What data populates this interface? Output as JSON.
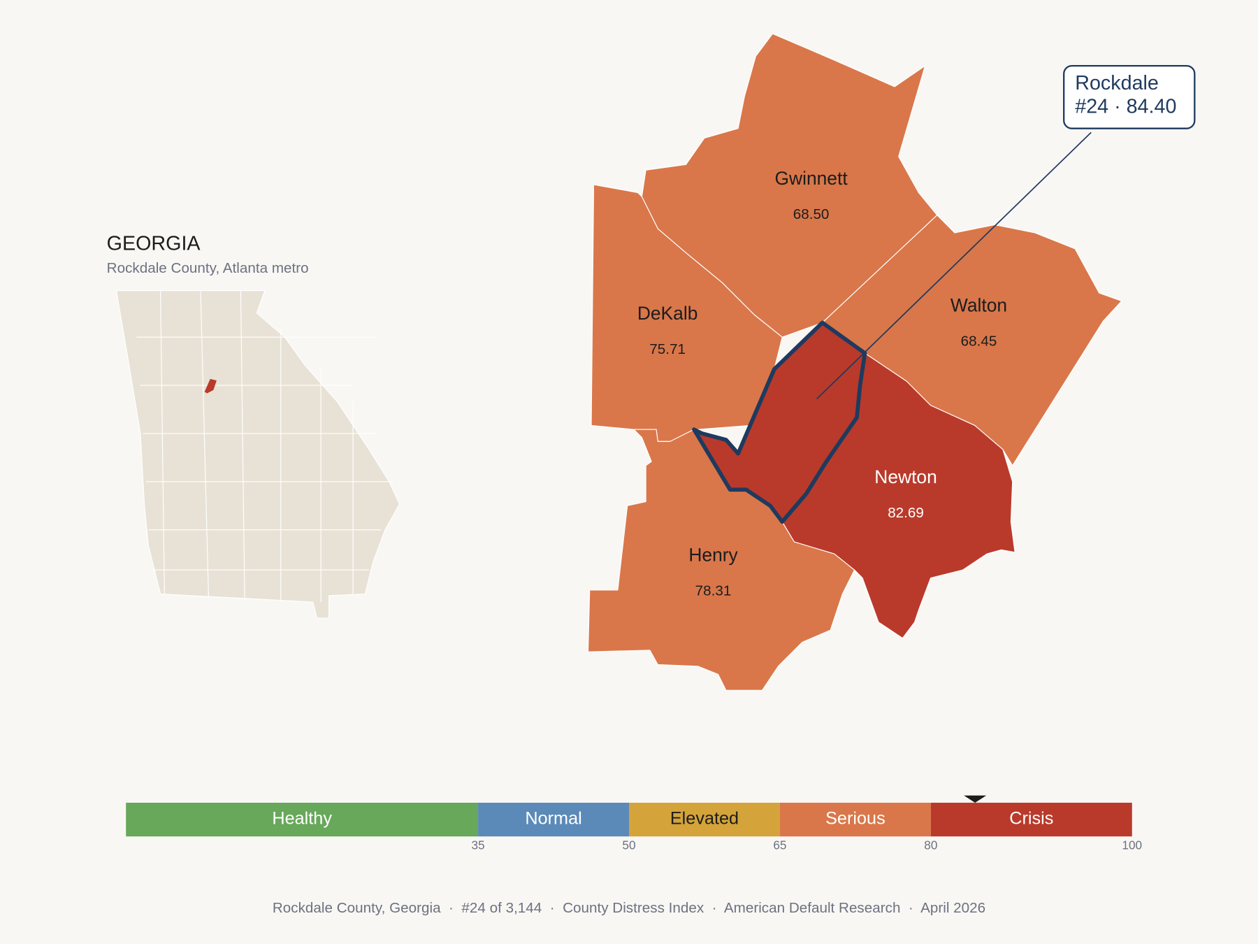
{
  "map": {
    "title": "GEORGIA",
    "subtitle": "Rockdale County, Atlanta metro"
  },
  "counties": [
    {
      "name": "Gwinnett",
      "value": "68.50",
      "color": "#d9774a"
    },
    {
      "name": "DeKalb",
      "value": "75.71",
      "color": "#d9774a"
    },
    {
      "name": "Walton",
      "value": "68.45",
      "color": "#d9774a"
    },
    {
      "name": "Henry",
      "value": "78.31",
      "color": "#d9774a"
    },
    {
      "name": "Newton",
      "value": "82.69",
      "color": "#b93a2b"
    },
    {
      "name": "Rockdale",
      "color": "#b93a2b"
    }
  ],
  "callout": {
    "line1": "Rockdale",
    "line2": "#24 · 84.40"
  },
  "legend": {
    "lim": [
      0,
      100
    ],
    "ticks": [
      35,
      50,
      65,
      80,
      100
    ],
    "marker": 84.4,
    "bands": [
      {
        "label": "Healthy",
        "color": "#67a85a"
      },
      {
        "label": "Normal",
        "color": "#5b8ab9"
      },
      {
        "label": "Elevated",
        "color": "#d4a33a"
      },
      {
        "label": "Serious",
        "color": "#d9774a"
      },
      {
        "label": "Crisis",
        "color": "#b93a2b"
      }
    ]
  },
  "footer": "Rockdale County, Georgia  ·  #24 of 3,144  ·  County Distress Index  ·  American Default Research  ·  April 2026"
}
